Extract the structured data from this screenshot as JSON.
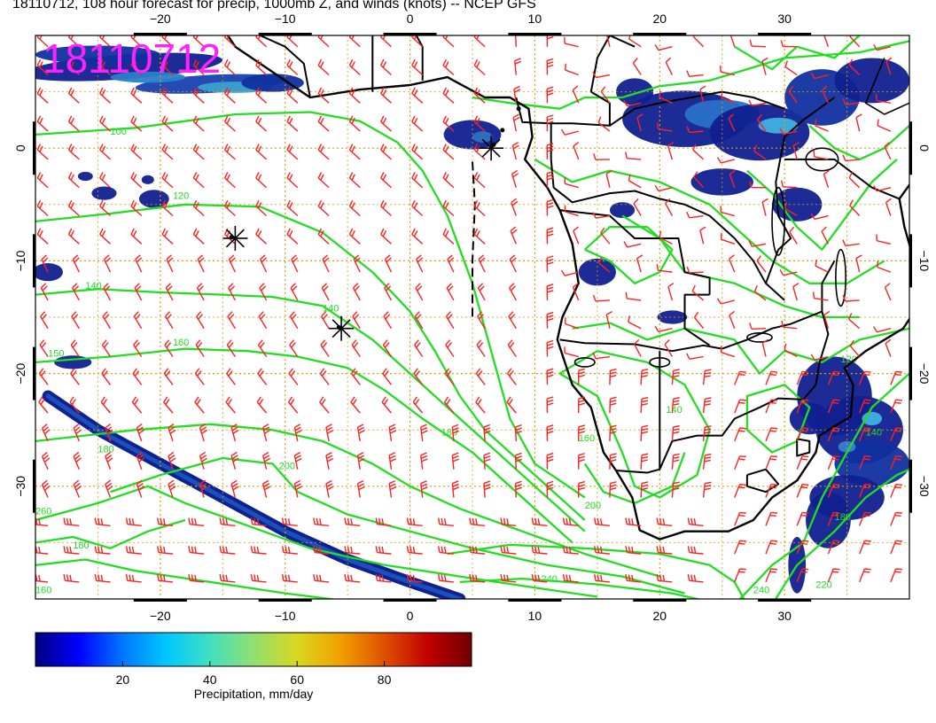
{
  "title": "18110712, 108 hour forecast for precip, 1000mb Z, and winds (knots) -- NCEP GFS",
  "date_stamp": "18110712",
  "map": {
    "lon_range": [
      -30,
      40
    ],
    "lat_range": [
      -40,
      10
    ],
    "lon_ticks": [
      -20,
      -10,
      0,
      10,
      20,
      30
    ],
    "lat_ticks": [
      0,
      -10,
      -20,
      -30
    ],
    "lon_labels": [
      "−20",
      "−10",
      "0",
      "10",
      "20",
      "30"
    ],
    "lat_labels": [
      "0",
      "−10",
      "−20",
      "−30"
    ],
    "contour_labels": [
      {
        "text": "100",
        "lon": -24,
        "lat": 1.2
      },
      {
        "text": "120",
        "lon": -19,
        "lat": -4.5
      },
      {
        "text": "140",
        "lon": -26,
        "lat": -12.5
      },
      {
        "text": "140",
        "lon": -7,
        "lat": -14.5
      },
      {
        "text": "160",
        "lon": -19,
        "lat": -17.5
      },
      {
        "text": "150",
        "lon": -29,
        "lat": -18.5
      },
      {
        "text": "180",
        "lon": -25,
        "lat": -27
      },
      {
        "text": "200",
        "lon": -10.5,
        "lat": -28.5
      },
      {
        "text": "180",
        "lon": 2.5,
        "lat": -25.5
      },
      {
        "text": "200",
        "lon": 14,
        "lat": -32
      },
      {
        "text": "140",
        "lon": 20.5,
        "lat": -23.5
      },
      {
        "text": "160",
        "lon": 13.5,
        "lat": -26
      },
      {
        "text": "240",
        "lon": 10.5,
        "lat": -38.5
      },
      {
        "text": "240",
        "lon": 27.5,
        "lat": -39.5
      },
      {
        "text": "220",
        "lon": 32.5,
        "lat": -39
      },
      {
        "text": "180",
        "lon": 34,
        "lat": -33
      },
      {
        "text": "140",
        "lon": 36.5,
        "lat": -25.5
      },
      {
        "text": "120",
        "lon": 34.5,
        "lat": -19
      },
      {
        "text": "180",
        "lon": -27,
        "lat": -35.5
      },
      {
        "text": "160",
        "lon": -30,
        "lat": -39.5
      },
      {
        "text": "260",
        "lon": -30,
        "lat": -32.5
      }
    ],
    "high_markers": [
      {
        "lon": -14,
        "lat": -8
      },
      {
        "lon": -5.5,
        "lat": -16
      },
      {
        "lon": 6.5,
        "lat": 0
      }
    ]
  },
  "colorbar": {
    "ticks": [
      20,
      40,
      60,
      80
    ],
    "range": [
      0,
      100
    ],
    "label": "Precipitation, mm/day",
    "colors": [
      "#000080",
      "#0000ff",
      "#0077ff",
      "#00c8ff",
      "#40e0c0",
      "#90e070",
      "#d8d820",
      "#f0a000",
      "#e05000",
      "#c00000",
      "#700000"
    ]
  },
  "colors": {
    "contours": "#22dd22",
    "wind_barbs": "#ff2020",
    "grid": "#d4a017",
    "coast": "#000000",
    "stamp": "#ff22ff"
  }
}
